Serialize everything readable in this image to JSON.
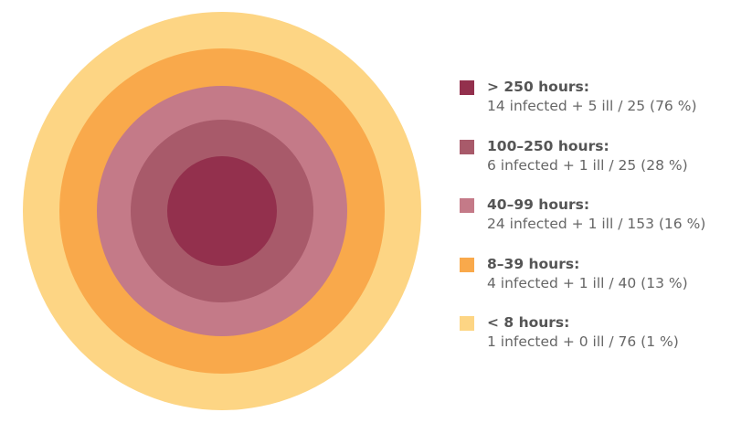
{
  "items": [
    {
      "label": "> 250 hours:",
      "detail": "14 infected + 5 ill / 25 (76 %)",
      "color": "#93304d"
    },
    {
      "label": "100–250 hours:",
      "detail": "6 infected + 1 ill / 25 (28 %)",
      "color": "#a85a6a"
    },
    {
      "label": "40–99 hours:",
      "detail": "24 infected + 1 ill / 153 (16 %)",
      "color": "#c47a88"
    },
    {
      "label": "8–39 hours:",
      "detail": "4 infected + 1 ill / 40 (13 %)",
      "color": "#f9a94b"
    },
    {
      "label": "< 8 hours:",
      "detail": "1 infected + 0 ill / 76 (1 %)",
      "color": "#fdd584"
    }
  ]
}
